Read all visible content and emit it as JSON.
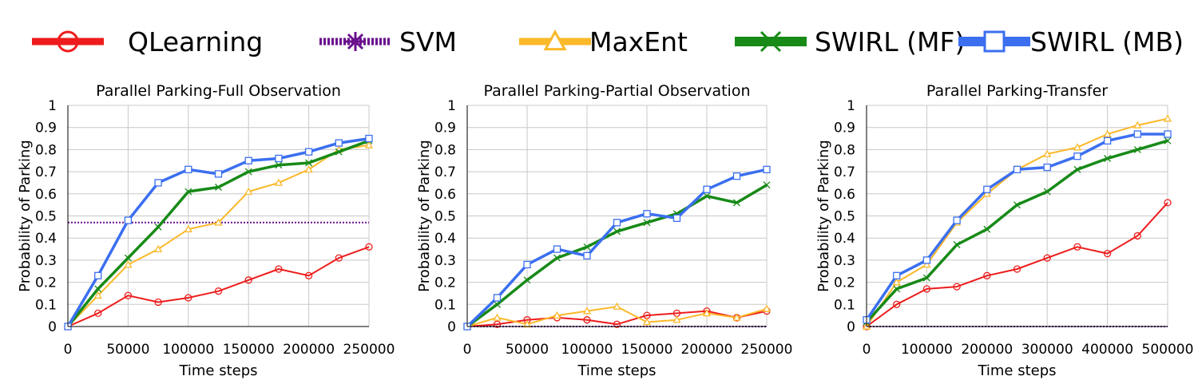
{
  "legend": [
    {
      "name": "QLearning",
      "color": "#ee1c1c",
      "marker": "circle",
      "dash": "none"
    },
    {
      "name": "SVM",
      "color": "#6a0f8e",
      "marker": "star",
      "dash": "dot"
    },
    {
      "name": "MaxEnt",
      "color": "#fbb829",
      "marker": "triangle",
      "dash": "none"
    },
    {
      "name": "SWIRL (MF)",
      "color": "#178a17",
      "marker": "x",
      "dash": "none"
    },
    {
      "name": "SWIRL (MB)",
      "color": "#3b6ff0",
      "marker": "square",
      "dash": "none"
    }
  ],
  "chart_data": [
    {
      "type": "line",
      "title": "Parallel Parking-Full Observation",
      "xlabel": "Time steps",
      "ylabel": "Probability of Parking",
      "xlim": [
        0,
        250000
      ],
      "ylim": [
        0,
        1
      ],
      "xticks": [
        0,
        50000,
        100000,
        150000,
        200000,
        250000
      ],
      "yticks": [
        "0",
        "0.1",
        "0.2",
        "0.3",
        "0.4",
        "0.5",
        "0.6",
        "0.7",
        "0.8",
        "0.9",
        "1"
      ],
      "grid": true,
      "series": [
        {
          "name": "QLearning",
          "x": [
            0,
            25000,
            50000,
            75000,
            100000,
            125000,
            150000,
            175000,
            200000,
            225000,
            250000
          ],
          "y": [
            0,
            0.06,
            0.14,
            0.11,
            0.13,
            0.16,
            0.21,
            0.26,
            0.23,
            0.31,
            0.36
          ]
        },
        {
          "name": "SVM",
          "x": [
            0,
            250000
          ],
          "y": [
            0.47,
            0.47
          ]
        },
        {
          "name": "MaxEnt",
          "x": [
            0,
            25000,
            50000,
            75000,
            100000,
            125000,
            150000,
            175000,
            200000,
            225000,
            250000
          ],
          "y": [
            0,
            0.14,
            0.28,
            0.35,
            0.44,
            0.47,
            0.61,
            0.65,
            0.71,
            0.8,
            0.82
          ]
        },
        {
          "name": "SWIRL (MF)",
          "x": [
            0,
            25000,
            50000,
            75000,
            100000,
            125000,
            150000,
            175000,
            200000,
            225000,
            250000
          ],
          "y": [
            0,
            0.17,
            0.31,
            0.45,
            0.61,
            0.63,
            0.7,
            0.73,
            0.74,
            0.79,
            0.84
          ]
        },
        {
          "name": "SWIRL (MB)",
          "x": [
            0,
            25000,
            50000,
            75000,
            100000,
            125000,
            150000,
            175000,
            200000,
            225000,
            250000
          ],
          "y": [
            0,
            0.23,
            0.48,
            0.65,
            0.71,
            0.69,
            0.75,
            0.76,
            0.79,
            0.83,
            0.85
          ]
        }
      ]
    },
    {
      "type": "line",
      "title": "Parallel Parking-Partial Observation",
      "xlabel": "Time steps",
      "ylabel": "Probability of Parking",
      "xlim": [
        0,
        250000
      ],
      "ylim": [
        0,
        1
      ],
      "xticks": [
        0,
        50000,
        100000,
        150000,
        200000,
        250000
      ],
      "yticks": [
        "0",
        "0.1",
        "0.2",
        "0.3",
        "0.4",
        "0.5",
        "0.6",
        "0.7",
        "0.8",
        "0.9",
        "1"
      ],
      "grid": true,
      "series": [
        {
          "name": "QLearning",
          "x": [
            0,
            25000,
            50000,
            75000,
            100000,
            125000,
            150000,
            175000,
            200000,
            225000,
            250000
          ],
          "y": [
            0,
            0.01,
            0.03,
            0.04,
            0.03,
            0.01,
            0.05,
            0.06,
            0.07,
            0.04,
            0.07
          ]
        },
        {
          "name": "SVM",
          "x": [
            0,
            250000
          ],
          "y": [
            0,
            0
          ]
        },
        {
          "name": "MaxEnt",
          "x": [
            0,
            25000,
            50000,
            75000,
            100000,
            125000,
            150000,
            175000,
            200000,
            225000,
            250000
          ],
          "y": [
            0,
            0.04,
            0.01,
            0.05,
            0.07,
            0.09,
            0.02,
            0.03,
            0.06,
            0.04,
            0.08
          ]
        },
        {
          "name": "SWIRL (MF)",
          "x": [
            0,
            25000,
            50000,
            75000,
            100000,
            125000,
            150000,
            175000,
            200000,
            225000,
            250000
          ],
          "y": [
            0,
            0.1,
            0.21,
            0.31,
            0.36,
            0.43,
            0.47,
            0.51,
            0.59,
            0.56,
            0.64
          ]
        },
        {
          "name": "SWIRL (MB)",
          "x": [
            0,
            25000,
            50000,
            75000,
            100000,
            125000,
            150000,
            175000,
            200000,
            225000,
            250000
          ],
          "y": [
            0,
            0.13,
            0.28,
            0.35,
            0.32,
            0.47,
            0.51,
            0.49,
            0.62,
            0.68,
            0.71
          ]
        }
      ]
    },
    {
      "type": "line",
      "title": "Parallel Parking-Transfer",
      "xlabel": "Time steps",
      "ylabel": "Probability of Parking",
      "xlim": [
        0,
        500000
      ],
      "ylim": [
        0,
        1
      ],
      "xticks": [
        0,
        100000,
        200000,
        300000,
        400000,
        500000
      ],
      "yticks": [
        "0",
        "0.1",
        "0.2",
        "0.3",
        "0.4",
        "0.5",
        "0.6",
        "0.7",
        "0.8",
        "0.9",
        "1"
      ],
      "grid": true,
      "series": [
        {
          "name": "QLearning",
          "x": [
            0,
            50000,
            100000,
            150000,
            200000,
            250000,
            300000,
            350000,
            400000,
            450000,
            500000
          ],
          "y": [
            0,
            0.1,
            0.17,
            0.18,
            0.23,
            0.26,
            0.31,
            0.36,
            0.33,
            0.41,
            0.56
          ]
        },
        {
          "name": "SVM",
          "x": [
            0,
            500000
          ],
          "y": [
            0,
            0
          ]
        },
        {
          "name": "MaxEnt",
          "x": [
            0,
            50000,
            100000,
            150000,
            200000,
            250000,
            300000,
            350000,
            400000,
            450000,
            500000
          ],
          "y": [
            0,
            0.2,
            0.28,
            0.47,
            0.6,
            0.71,
            0.78,
            0.81,
            0.87,
            0.91,
            0.94
          ]
        },
        {
          "name": "SWIRL (MF)",
          "x": [
            0,
            50000,
            100000,
            150000,
            200000,
            250000,
            300000,
            350000,
            400000,
            450000,
            500000
          ],
          "y": [
            0.02,
            0.17,
            0.22,
            0.37,
            0.44,
            0.55,
            0.61,
            0.71,
            0.76,
            0.8,
            0.84
          ]
        },
        {
          "name": "SWIRL (MB)",
          "x": [
            0,
            50000,
            100000,
            150000,
            200000,
            250000,
            300000,
            350000,
            400000,
            450000,
            500000
          ],
          "y": [
            0.03,
            0.23,
            0.3,
            0.48,
            0.62,
            0.71,
            0.72,
            0.77,
            0.84,
            0.87,
            0.87
          ]
        }
      ]
    }
  ]
}
